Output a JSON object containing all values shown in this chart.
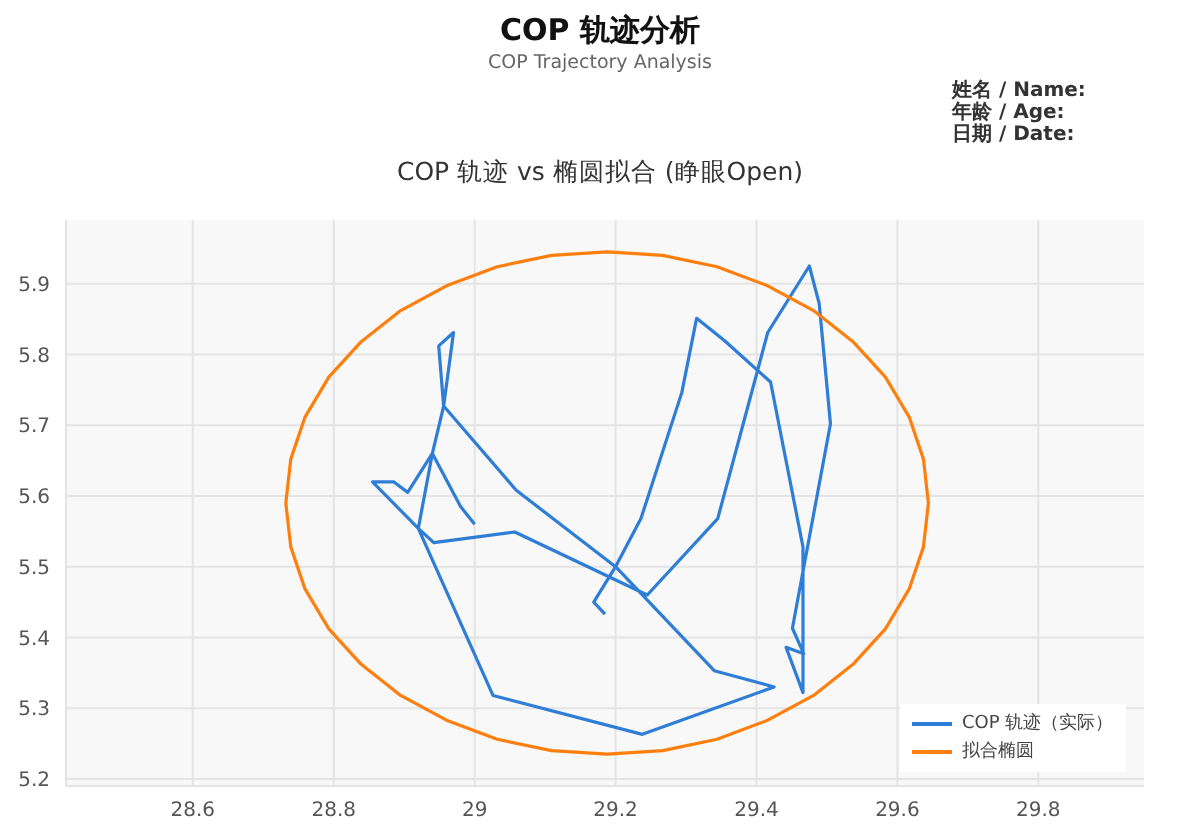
{
  "chart_data": {
    "type": "line",
    "title": "COP 轨迹分析",
    "subtitle": "COP Trajectory Analysis",
    "annotations": [
      "COP 轨迹 vs 椭圆拟合 (睁眼Open)",
      "姓名 / Name:",
      "年龄 / Age:",
      "日期 / Date:"
    ],
    "xlim": [
      28.42,
      29.95
    ],
    "xticks": [
      28.6,
      28.8,
      29,
      29.2,
      29.4,
      29.6,
      29.8
    ],
    "ylim": [
      5.19,
      5.99
    ],
    "yticks": [
      5.2,
      5.3,
      5.4,
      5.5,
      5.6,
      5.7,
      5.8,
      5.9
    ],
    "grid": true,
    "legend": "bottom right",
    "marker": "none",
    "line_style": "solid",
    "series": [
      {
        "name": "COP 轨迹（实际）",
        "color": "#2e7dd6",
        "x": [
          29.0,
          28.98,
          28.94,
          28.905,
          28.885,
          28.855,
          28.92,
          28.942,
          29.057,
          29.245,
          29.345,
          29.416,
          29.475,
          29.489,
          29.505,
          29.451,
          29.467,
          29.442,
          29.466,
          29.466,
          29.42,
          29.354,
          29.315,
          29.294,
          29.236,
          29.2,
          29.34,
          29.425,
          29.238,
          29.026,
          28.92,
          28.94,
          28.956,
          28.97,
          28.949,
          28.956,
          29.059,
          29.2,
          29.169,
          29.185
        ],
        "values": [
          5.56,
          5.585,
          5.66,
          5.605,
          5.62,
          5.62,
          5.554,
          5.534,
          5.549,
          5.46,
          5.568,
          5.831,
          5.925,
          5.872,
          5.702,
          5.413,
          5.377,
          5.386,
          5.322,
          5.528,
          5.761,
          5.82,
          5.851,
          5.746,
          5.568,
          5.5,
          5.353,
          5.33,
          5.263,
          5.318,
          5.554,
          5.66,
          5.727,
          5.831,
          5.812,
          5.727,
          5.608,
          5.5,
          5.45,
          5.433
        ]
      },
      {
        "name": "拟合椭圆",
        "color": "#ff7f0e",
        "x": [
          29.644,
          29.637,
          29.617,
          29.583,
          29.537,
          29.481,
          29.416,
          29.344,
          29.267,
          29.188,
          29.109,
          29.032,
          28.96,
          28.895,
          28.839,
          28.793,
          28.759,
          28.739,
          28.732,
          28.739,
          28.759,
          28.793,
          28.839,
          28.895,
          28.96,
          29.032,
          29.109,
          29.188,
          29.267,
          29.344,
          29.416,
          29.481,
          29.537,
          29.583,
          29.617,
          29.637,
          29.644,
          29.637
        ],
        "values": [
          5.59,
          5.652,
          5.711,
          5.768,
          5.818,
          5.862,
          5.897,
          5.924,
          5.94,
          5.945,
          5.94,
          5.924,
          5.897,
          5.862,
          5.818,
          5.768,
          5.711,
          5.652,
          5.59,
          5.528,
          5.469,
          5.412,
          5.362,
          5.318,
          5.283,
          5.256,
          5.24,
          5.235,
          5.24,
          5.256,
          5.283,
          5.318,
          5.362,
          5.412,
          5.469,
          5.528,
          5.59,
          5.652
        ]
      }
    ]
  }
}
